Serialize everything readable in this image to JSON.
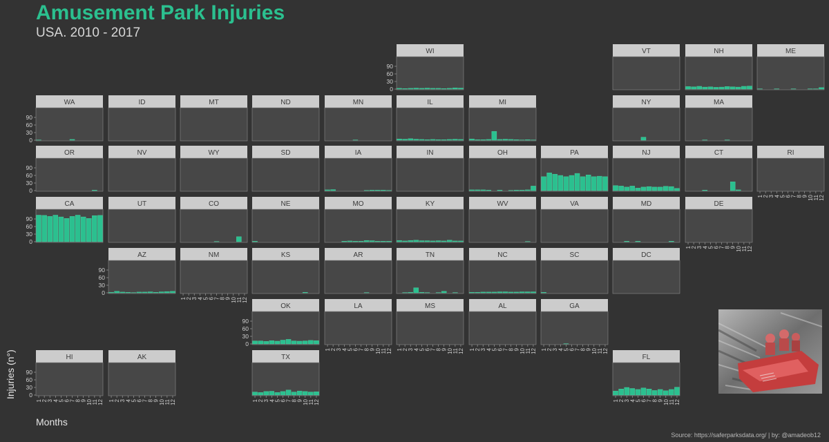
{
  "title": "Amusement Park Injuries",
  "subtitle": "USA. 2010 - 2017",
  "y_axis_label": "Injuries (n°)",
  "x_axis_label": "Months",
  "caption": "Source: https://saferparksdata.org/ | by: @amadeob12",
  "photo_description": "roller-coaster-riders-photo",
  "colors": {
    "background": "#333333",
    "panel": "#474747",
    "strip": "#cccccc",
    "bar_fill": "#2bc08f",
    "accent": "#2bc08f"
  },
  "chart_data": {
    "type": "bar",
    "layout": "geo-facet grid of small multiples, one panel per US state",
    "x_ticks": [
      "1",
      "2",
      "3",
      "4",
      "5",
      "6",
      "7",
      "8",
      "9",
      "10",
      "11",
      "12"
    ],
    "y_ticks": [
      "0",
      "30",
      "60",
      "90"
    ],
    "ylim": [
      0,
      120
    ],
    "grid": false,
    "panels": [
      {
        "state": "WI",
        "values": [
          3,
          2,
          3,
          4,
          3,
          4,
          3,
          3,
          2,
          3,
          5,
          4
        ]
      },
      {
        "state": "VT",
        "values": [
          0,
          0,
          0,
          0,
          0,
          0,
          0,
          0,
          0,
          0,
          0,
          0
        ]
      },
      {
        "state": "NH",
        "values": [
          10,
          9,
          11,
          8,
          9,
          7,
          8,
          10,
          9,
          8,
          11,
          12
        ]
      },
      {
        "state": "ME",
        "values": [
          1,
          0,
          0,
          1,
          0,
          0,
          1,
          0,
          0,
          1,
          1,
          6
        ]
      },
      {
        "state": "WA",
        "values": [
          1,
          0,
          0,
          0,
          0,
          0,
          3,
          0,
          0,
          0,
          0,
          0
        ]
      },
      {
        "state": "ID",
        "values": [
          0,
          0,
          0,
          0,
          0,
          0,
          0,
          0,
          0,
          0,
          0,
          0
        ]
      },
      {
        "state": "MT",
        "values": [
          0,
          0,
          0,
          0,
          0,
          0,
          0,
          0,
          0,
          0,
          0,
          0
        ]
      },
      {
        "state": "ND",
        "values": [
          0,
          0,
          0,
          0,
          0,
          0,
          0,
          0,
          0,
          0,
          0,
          0
        ]
      },
      {
        "state": "MN",
        "values": [
          0,
          0,
          0,
          0,
          0,
          1,
          0,
          0,
          0,
          0,
          0,
          0
        ]
      },
      {
        "state": "IL",
        "values": [
          5,
          4,
          6,
          4,
          3,
          2,
          3,
          2,
          2,
          3,
          4,
          3
        ]
      },
      {
        "state": "MI",
        "values": [
          5,
          2,
          2,
          3,
          35,
          3,
          4,
          3,
          2,
          1,
          2,
          1
        ]
      },
      {
        "state": "NY",
        "values": [
          0,
          0,
          0,
          0,
          0,
          12,
          0,
          0,
          0,
          0,
          0,
          0
        ]
      },
      {
        "state": "MA",
        "values": [
          0,
          0,
          0,
          1,
          0,
          0,
          0,
          1,
          0,
          0,
          0,
          0
        ]
      },
      {
        "state": "OR",
        "values": [
          0,
          0,
          0,
          0,
          0,
          0,
          0,
          0,
          0,
          0,
          2,
          0
        ]
      },
      {
        "state": "NV",
        "values": [
          0,
          0,
          0,
          0,
          0,
          0,
          0,
          0,
          0,
          0,
          0,
          0
        ]
      },
      {
        "state": "WY",
        "values": [
          0,
          0,
          0,
          0,
          0,
          0,
          0,
          0,
          0,
          0,
          0,
          0
        ]
      },
      {
        "state": "SD",
        "values": [
          0,
          0,
          0,
          0,
          0,
          0,
          0,
          0,
          0,
          0,
          0,
          0
        ]
      },
      {
        "state": "IA",
        "values": [
          3,
          4,
          0,
          0,
          0,
          0,
          0,
          1,
          2,
          2,
          2,
          1
        ]
      },
      {
        "state": "IN",
        "values": [
          0,
          0,
          0,
          0,
          0,
          0,
          0,
          0,
          0,
          0,
          0,
          0
        ]
      },
      {
        "state": "OH",
        "values": [
          3,
          3,
          3,
          2,
          0,
          2,
          0,
          1,
          2,
          2,
          3,
          18
        ]
      },
      {
        "state": "PA",
        "values": [
          55,
          70,
          65,
          60,
          55,
          60,
          68,
          55,
          62,
          55,
          57,
          55
        ]
      },
      {
        "state": "NJ",
        "values": [
          20,
          18,
          14,
          18,
          10,
          14,
          16,
          14,
          14,
          17,
          16,
          9
        ]
      },
      {
        "state": "CT",
        "values": [
          0,
          0,
          0,
          2,
          0,
          0,
          0,
          0,
          35,
          3,
          0,
          0
        ]
      },
      {
        "state": "RI",
        "values": [
          0,
          0,
          0,
          0,
          0,
          0,
          0,
          0,
          0,
          0,
          0,
          0
        ]
      },
      {
        "state": "CA",
        "values": [
          105,
          104,
          100,
          105,
          98,
          92,
          100,
          105,
          98,
          92,
          103,
          104
        ]
      },
      {
        "state": "UT",
        "values": [
          0,
          0,
          0,
          0,
          0,
          0,
          0,
          0,
          0,
          0,
          0,
          0
        ]
      },
      {
        "state": "CO",
        "values": [
          0,
          0,
          0,
          0,
          0,
          0,
          1,
          0,
          0,
          0,
          20,
          0
        ]
      },
      {
        "state": "NE",
        "values": [
          2,
          0,
          0,
          0,
          0,
          0,
          0,
          0,
          0,
          0,
          0,
          0
        ]
      },
      {
        "state": "MO",
        "values": [
          0,
          0,
          0,
          2,
          3,
          2,
          2,
          5,
          4,
          2,
          2,
          2
        ]
      },
      {
        "state": "KY",
        "values": [
          5,
          3,
          5,
          6,
          4,
          4,
          3,
          4,
          3,
          6,
          3,
          3
        ]
      },
      {
        "state": "WV",
        "values": [
          0,
          0,
          0,
          0,
          0,
          0,
          0,
          0,
          0,
          0,
          1,
          0
        ]
      },
      {
        "state": "VA",
        "values": [
          0,
          0,
          0,
          0,
          0,
          0,
          0,
          0,
          0,
          0,
          0,
          0
        ]
      },
      {
        "state": "MD",
        "values": [
          0,
          0,
          2,
          0,
          2,
          0,
          0,
          0,
          0,
          0,
          2,
          0
        ]
      },
      {
        "state": "DE",
        "values": [
          0,
          0,
          0,
          0,
          0,
          0,
          0,
          0,
          0,
          0,
          0,
          0
        ]
      },
      {
        "state": "AZ",
        "values": [
          2,
          6,
          3,
          2,
          1,
          3,
          3,
          4,
          2,
          4,
          5,
          6
        ]
      },
      {
        "state": "NM",
        "values": [
          0,
          0,
          0,
          0,
          0,
          0,
          0,
          0,
          0,
          0,
          0,
          0
        ]
      },
      {
        "state": "KS",
        "values": [
          0,
          0,
          0,
          0,
          0,
          0,
          0,
          0,
          0,
          2,
          0,
          0
        ]
      },
      {
        "state": "AR",
        "values": [
          0,
          0,
          0,
          0,
          0,
          0,
          0,
          1,
          0,
          0,
          0,
          0
        ]
      },
      {
        "state": "TN",
        "values": [
          0,
          1,
          2,
          20,
          2,
          1,
          0,
          1,
          6,
          0,
          1,
          0
        ]
      },
      {
        "state": "NC",
        "values": [
          2,
          2,
          3,
          3,
          3,
          4,
          4,
          3,
          3,
          4,
          4,
          4
        ]
      },
      {
        "state": "SC",
        "values": [
          2,
          0,
          0,
          0,
          0,
          0,
          0,
          0,
          0,
          0,
          0,
          0
        ]
      },
      {
        "state": "DC",
        "values": [
          0,
          0,
          0,
          0,
          0,
          0,
          0,
          0,
          0,
          0,
          0,
          0
        ]
      },
      {
        "state": "OK",
        "values": [
          12,
          12,
          10,
          13,
          11,
          15,
          18,
          12,
          11,
          12,
          14,
          13
        ]
      },
      {
        "state": "LA",
        "values": [
          0,
          0,
          0,
          0,
          0,
          0,
          0,
          0,
          0,
          0,
          0,
          0
        ]
      },
      {
        "state": "MS",
        "values": [
          0,
          0,
          0,
          0,
          0,
          0,
          0,
          0,
          0,
          0,
          0,
          0
        ]
      },
      {
        "state": "AL",
        "values": [
          0,
          0,
          0,
          0,
          0,
          0,
          0,
          0,
          0,
          0,
          0,
          0
        ]
      },
      {
        "state": "GA",
        "values": [
          0,
          0,
          0,
          0,
          1,
          0,
          0,
          0,
          0,
          0,
          0,
          0
        ]
      },
      {
        "state": "HI",
        "values": [
          0,
          0,
          0,
          0,
          0,
          0,
          0,
          0,
          0,
          0,
          0,
          0
        ]
      },
      {
        "state": "AK",
        "values": [
          0,
          0,
          0,
          0,
          0,
          0,
          0,
          0,
          0,
          0,
          0,
          0
        ]
      },
      {
        "state": "TX",
        "values": [
          12,
          10,
          14,
          15,
          10,
          14,
          20,
          12,
          16,
          14,
          12,
          13
        ]
      },
      {
        "state": "FL",
        "values": [
          16,
          24,
          30,
          26,
          22,
          28,
          24,
          18,
          22,
          17,
          22,
          31
        ]
      }
    ]
  }
}
